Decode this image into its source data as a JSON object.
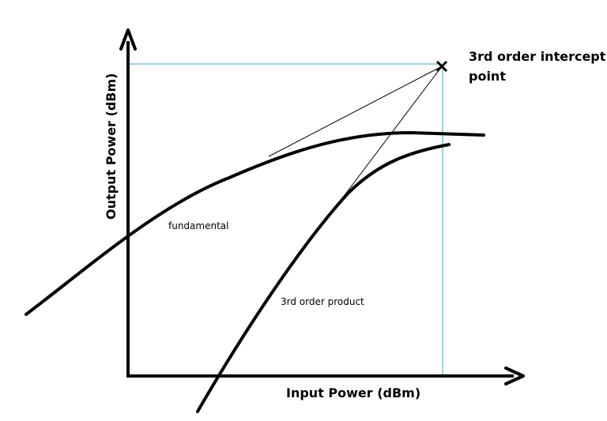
{
  "diagram": {
    "x_axis_label": "Input Power (dBm)",
    "y_axis_label": "Output Power (dBm)",
    "intercept_label_line1": "3rd order intercept",
    "intercept_label_line2": "point",
    "fundamental_label": "fundamental",
    "third_order_label": "3rd order product",
    "guide_color": "#3aa8b8",
    "curve_color": "#000000"
  }
}
